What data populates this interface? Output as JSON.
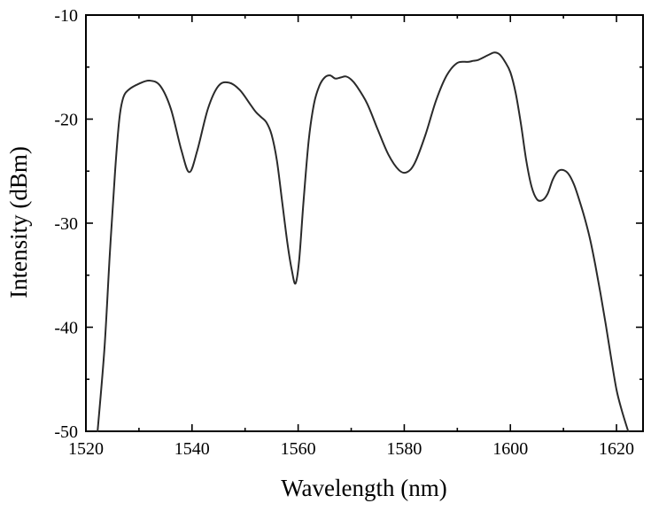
{
  "chart_data": {
    "type": "line",
    "title": "",
    "xlabel": "Wavelength (nm)",
    "ylabel": "Intensity (dBm)",
    "xlim": [
      1520,
      1625
    ],
    "ylim": [
      -50,
      -10
    ],
    "x_ticks": [
      1520,
      1540,
      1560,
      1580,
      1600,
      1620
    ],
    "x_tick_labels": [
      "1520",
      "1540",
      "1560",
      "1580",
      "1600",
      "1620"
    ],
    "y_ticks": [
      -50,
      -40,
      -30,
      -20,
      -10
    ],
    "y_tick_labels": [
      "-50",
      "-40",
      "-30",
      "-20",
      "-10"
    ],
    "grid": false,
    "series": [
      {
        "color": "#2a2a2a",
        "x": [
          1522.2,
          1523.5,
          1524.5,
          1525.5,
          1526.3,
          1527,
          1528,
          1530,
          1532,
          1534,
          1536,
          1538,
          1539.5,
          1541,
          1543,
          1545,
          1547,
          1549,
          1551,
          1552,
          1553,
          1554,
          1555,
          1556,
          1557,
          1558,
          1558.8,
          1559.5,
          1560.2,
          1561,
          1562,
          1563,
          1564,
          1565,
          1566,
          1567,
          1568,
          1569,
          1570,
          1571,
          1573,
          1575,
          1577,
          1579,
          1580.5,
          1582,
          1584,
          1586,
          1588,
          1590,
          1592,
          1593,
          1594,
          1596,
          1597,
          1598,
          1599,
          1600,
          1601,
          1602,
          1603,
          1604,
          1605,
          1606,
          1607,
          1608,
          1609,
          1610,
          1611,
          1612,
          1613,
          1614,
          1615,
          1616,
          1617,
          1618,
          1619,
          1620,
          1621,
          1622.2
        ],
        "y": [
          -50,
          -42,
          -33,
          -25,
          -20,
          -18,
          -17.2,
          -16.6,
          -16.3,
          -16.8,
          -19,
          -23,
          -25.1,
          -23,
          -19,
          -16.8,
          -16.5,
          -17.2,
          -18.6,
          -19.3,
          -19.8,
          -20.3,
          -21.5,
          -24,
          -28,
          -32,
          -34.5,
          -35.8,
          -33.5,
          -28,
          -22,
          -18.5,
          -16.8,
          -16,
          -15.8,
          -16.1,
          -16,
          -15.9,
          -16.2,
          -16.8,
          -18.5,
          -21,
          -23.4,
          -24.9,
          -25.1,
          -24.2,
          -21.5,
          -18.2,
          -15.8,
          -14.6,
          -14.5,
          -14.4,
          -14.3,
          -13.8,
          -13.6,
          -13.8,
          -14.5,
          -15.5,
          -17.5,
          -20.5,
          -24,
          -26.5,
          -27.7,
          -27.8,
          -27.2,
          -25.8,
          -25,
          -24.9,
          -25.3,
          -26.3,
          -27.8,
          -29.5,
          -31.5,
          -34,
          -36.8,
          -39.8,
          -43,
          -46,
          -48,
          -50
        ]
      }
    ]
  }
}
